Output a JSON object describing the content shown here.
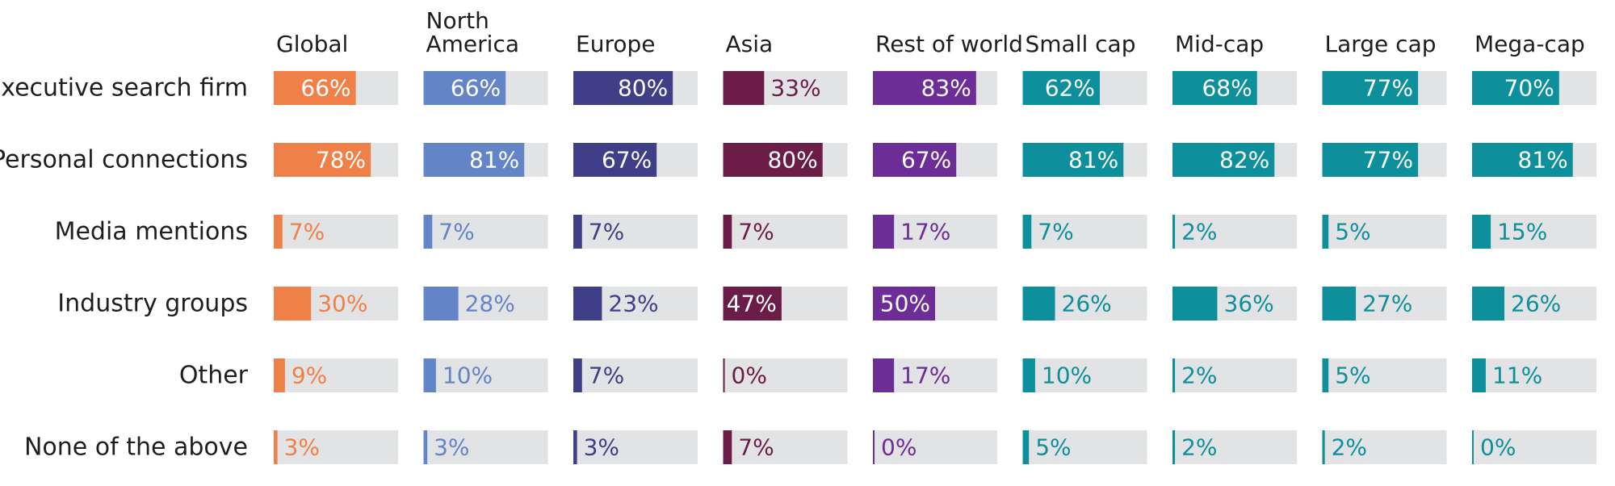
{
  "chart_data": {
    "type": "bar",
    "orientation": "horizontal",
    "layout": "small-multiples",
    "xlim": [
      0,
      100
    ],
    "value_format": "{v}%",
    "track_color": "#e2e3e5",
    "categories": [
      "Executive search firm",
      "Personal connections",
      "Media mentions",
      "Industry groups",
      "Other",
      "None of the above"
    ],
    "series": [
      {
        "name": [
          "Global"
        ],
        "color": "#ef8148",
        "values": [
          66,
          78,
          7,
          30,
          9,
          3
        ]
      },
      {
        "name": [
          "North",
          "America"
        ],
        "color": "#6484c8",
        "values": [
          66,
          81,
          7,
          28,
          10,
          3
        ]
      },
      {
        "name": [
          "Europe"
        ],
        "color": "#3f3f88",
        "values": [
          80,
          67,
          7,
          23,
          7,
          3
        ]
      },
      {
        "name": [
          "Asia"
        ],
        "color": "#6b1d47",
        "values": [
          33,
          80,
          7,
          47,
          0,
          7
        ]
      },
      {
        "name": [
          "Rest of world"
        ],
        "color": "#6c2d96",
        "values": [
          83,
          67,
          17,
          50,
          17,
          0
        ]
      },
      {
        "name": [
          "Small cap"
        ],
        "color": "#0e8f9c",
        "values": [
          62,
          81,
          7,
          26,
          10,
          5
        ]
      },
      {
        "name": [
          "Mid-cap"
        ],
        "color": "#0e8f9c",
        "values": [
          68,
          82,
          2,
          36,
          2,
          2
        ]
      },
      {
        "name": [
          "Large cap"
        ],
        "color": "#0e8f9c",
        "values": [
          77,
          77,
          5,
          27,
          5,
          2
        ]
      },
      {
        "name": [
          "Mega-cap"
        ],
        "color": "#0e8f9c",
        "values": [
          70,
          81,
          15,
          26,
          11,
          0
        ]
      }
    ]
  }
}
